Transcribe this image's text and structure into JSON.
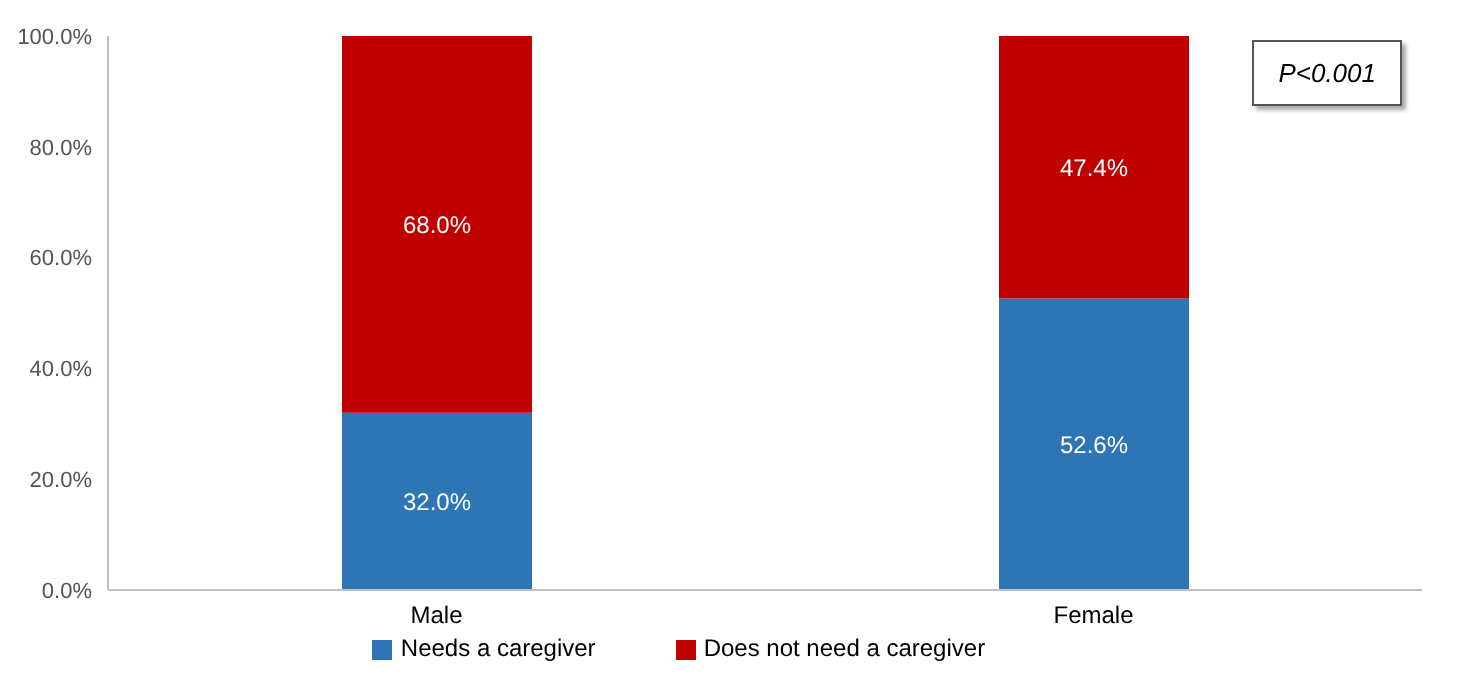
{
  "chart_data": {
    "type": "bar",
    "stacked": true,
    "categories": [
      "Male",
      "Female"
    ],
    "series": [
      {
        "name": "Needs a caregiver",
        "color": "#2e75b6",
        "values": [
          32.0,
          52.6
        ],
        "value_labels": [
          "32.0%",
          "52.6%"
        ]
      },
      {
        "name": "Does not need a caregiver",
        "color": "#c00000",
        "values": [
          68.0,
          47.4
        ],
        "value_labels": [
          "68.0%",
          "47.4%"
        ]
      }
    ],
    "ylim": [
      0,
      100
    ],
    "yticks": [
      {
        "value": 0,
        "label": "0.0%"
      },
      {
        "value": 20,
        "label": "20.0%"
      },
      {
        "value": 40,
        "label": "40.0%"
      },
      {
        "value": 60,
        "label": "60.0%"
      },
      {
        "value": 80,
        "label": "80.0%"
      },
      {
        "value": 100,
        "label": "100.0%"
      }
    ],
    "annotations": [
      "P<0.001"
    ],
    "legend": "bottom",
    "grid": false
  }
}
